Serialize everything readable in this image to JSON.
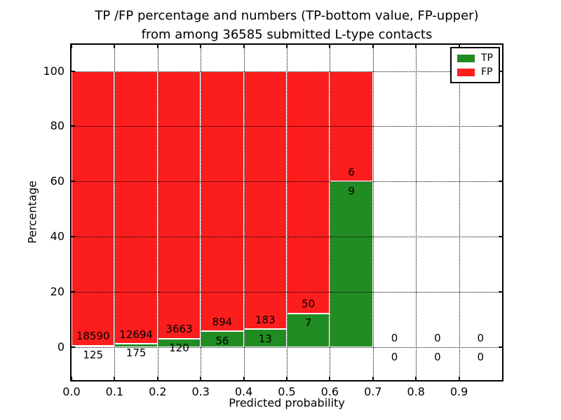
{
  "figure": {
    "title_line1": "TP /FP percentage and numbers (TP-bottom value, FP-upper)",
    "title_line2": "from among 36585 submitted L-type contacts"
  },
  "chart_data": {
    "type": "bar",
    "stacked": true,
    "title": "TP /FP percentage and numbers (TP-bottom value, FP-upper) from among 36585 submitted L-type contacts",
    "xlabel": "Predicted probability",
    "ylabel": "Percentage",
    "total_submitted": 36585,
    "bin_width": 0.1,
    "bin_starts": [
      0.0,
      0.1,
      0.2,
      0.3,
      0.4,
      0.5,
      0.6,
      0.7,
      0.8,
      0.9
    ],
    "x_tick_labels": [
      "0.0",
      "0.1",
      "0.2",
      "0.3",
      "0.4",
      "0.5",
      "0.6",
      "0.7",
      "0.8",
      "0.9"
    ],
    "x_tick_values": [
      0.0,
      0.1,
      0.2,
      0.3,
      0.4,
      0.5,
      0.6,
      0.7,
      0.8,
      0.9
    ],
    "y_tick_labels": [
      "0",
      "20",
      "40",
      "60",
      "80",
      "100"
    ],
    "y_tick_values": [
      0,
      20,
      40,
      60,
      80,
      100
    ],
    "xlim": [
      0.0,
      1.0
    ],
    "ylim": [
      -11.8,
      109.5
    ],
    "grid": {
      "style": "dotted",
      "color": "#000000"
    },
    "series": [
      {
        "name": "TP",
        "color": "#218c21",
        "counts": [
          125,
          175,
          120,
          56,
          13,
          7,
          9,
          0,
          0,
          0
        ],
        "percentages": [
          0.67,
          1.36,
          3.17,
          5.89,
          6.63,
          12.28,
          60.0,
          0,
          0,
          0
        ]
      },
      {
        "name": "FP",
        "color": "#fc1d1d",
        "counts": [
          18590,
          12694,
          3663,
          894,
          183,
          50,
          6,
          0,
          0,
          0
        ],
        "percentages": [
          99.33,
          98.64,
          96.83,
          94.11,
          93.37,
          87.72,
          40.0,
          0,
          0,
          0
        ]
      }
    ],
    "annotation_offset_data_units": 3.4,
    "legend": {
      "position": "upper right",
      "entries": [
        {
          "label": "TP",
          "color": "#218c21"
        },
        {
          "label": "FP",
          "color": "#fc1d1d"
        }
      ]
    }
  }
}
